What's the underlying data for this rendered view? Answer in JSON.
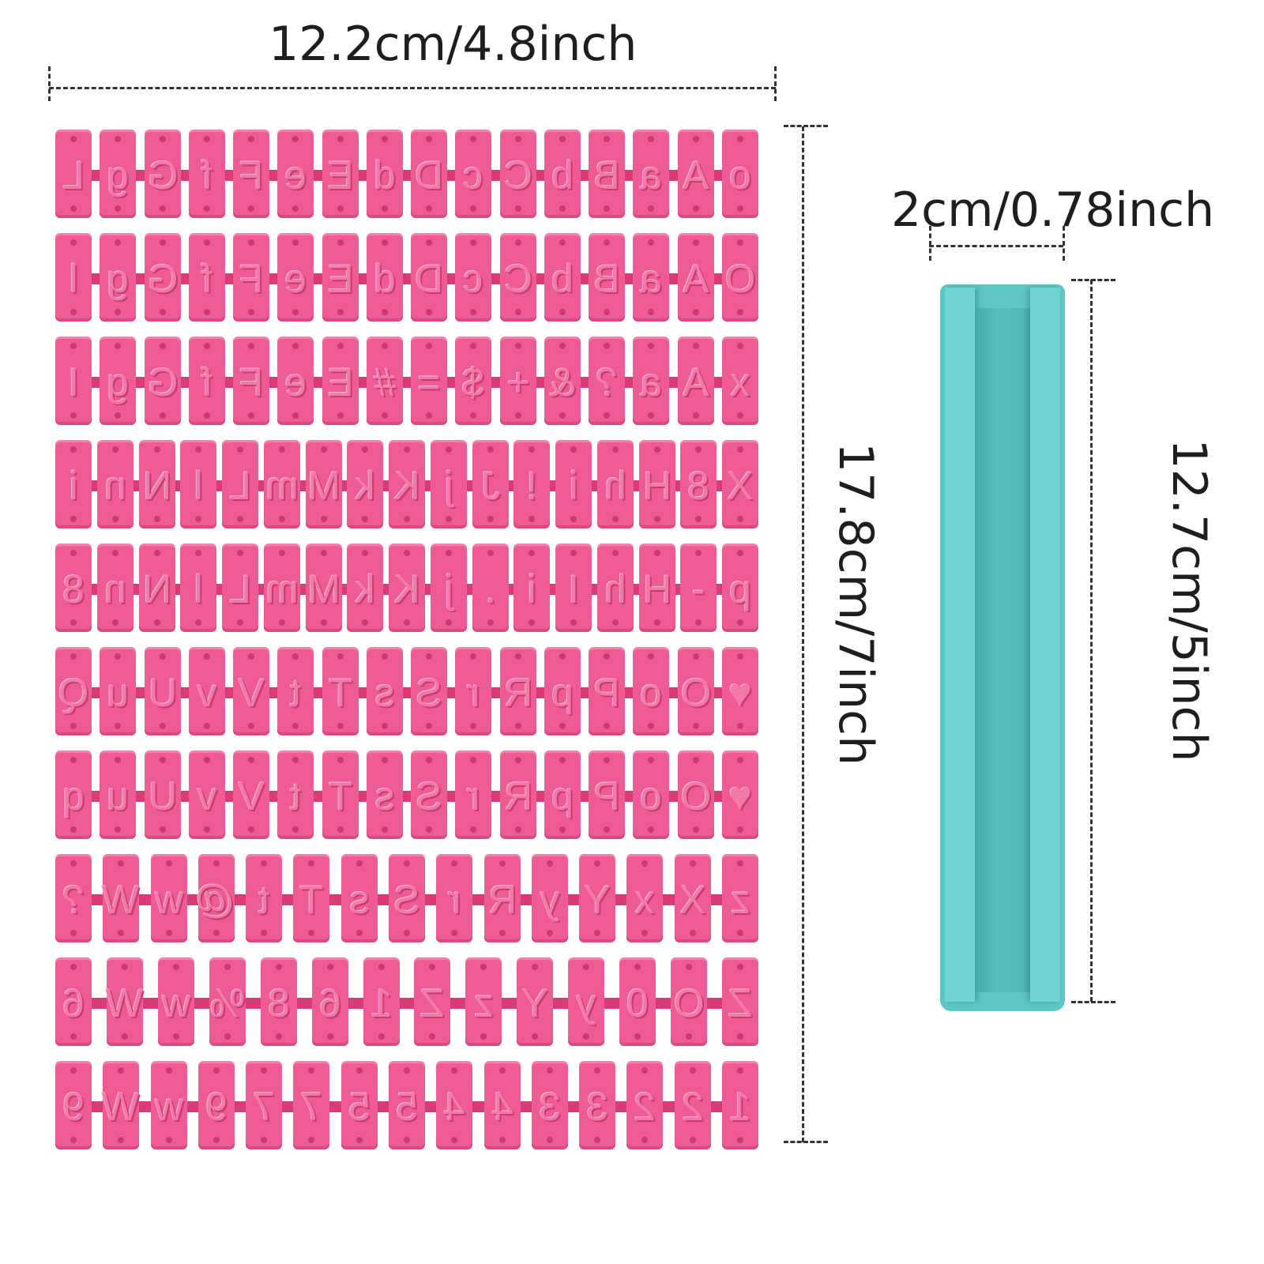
{
  "labels": {
    "sheet_width": "12.2cm/4.8inch",
    "sheet_height": "17.8cm/7inch",
    "bar_width": "2cm/0.78inch",
    "bar_height": "12.7cm/5inch"
  },
  "colors": {
    "stamp_pink": "#ef5b95",
    "stamp_dark": "#d83b78",
    "bar_teal": "#5fc7c5"
  },
  "stamp_rows": [
    [
      "L",
      "g",
      "G",
      "f",
      "F",
      "e",
      "E",
      "d",
      "D",
      "c",
      "C",
      "b",
      "B",
      "a",
      "A",
      "o"
    ],
    [
      "l",
      "g",
      "G",
      "f",
      "F",
      "e",
      "E",
      "d",
      "D",
      "c",
      "C",
      "b",
      "B",
      "a",
      "A",
      "O"
    ],
    [
      "I",
      "g",
      "G",
      "f",
      "F",
      "e",
      "E",
      "#",
      "=",
      "$",
      "+",
      "&",
      "?",
      "a",
      "A",
      "x"
    ],
    [
      "i",
      "n",
      "N",
      "l",
      "L",
      "m",
      "M",
      "k",
      "K",
      "j",
      "J",
      "!",
      "i",
      "h",
      "H",
      "8",
      "X"
    ],
    [
      "8",
      "n",
      "N",
      "l",
      "L",
      "m",
      "M",
      "k",
      "K",
      "j",
      ".",
      "i",
      "I",
      "h",
      "H",
      "-",
      "p"
    ],
    [
      "Q",
      "u",
      "U",
      "v",
      "V",
      "t",
      "T",
      "s",
      "S",
      "r",
      "R",
      "p",
      "P",
      "o",
      "O",
      "♥"
    ],
    [
      "q",
      "u",
      "U",
      "v",
      "V",
      "t",
      "T",
      "s",
      "S",
      "r",
      "R",
      "p",
      "P",
      "o",
      "O",
      "♥"
    ],
    [
      "?",
      "W",
      "w",
      "@",
      "t",
      "T",
      "s",
      "S",
      "r",
      "R",
      "y",
      "Y",
      "x",
      "X",
      "z"
    ],
    [
      "6",
      "W",
      "w",
      "%",
      "8",
      "6",
      "1",
      "Z",
      "z",
      "Y",
      "y",
      "0",
      "O",
      "Z"
    ],
    [
      "9",
      "W",
      "w",
      "9",
      "7",
      "7",
      "5",
      "5",
      "4",
      "4",
      "3",
      "3",
      "2",
      "2",
      "1"
    ]
  ]
}
